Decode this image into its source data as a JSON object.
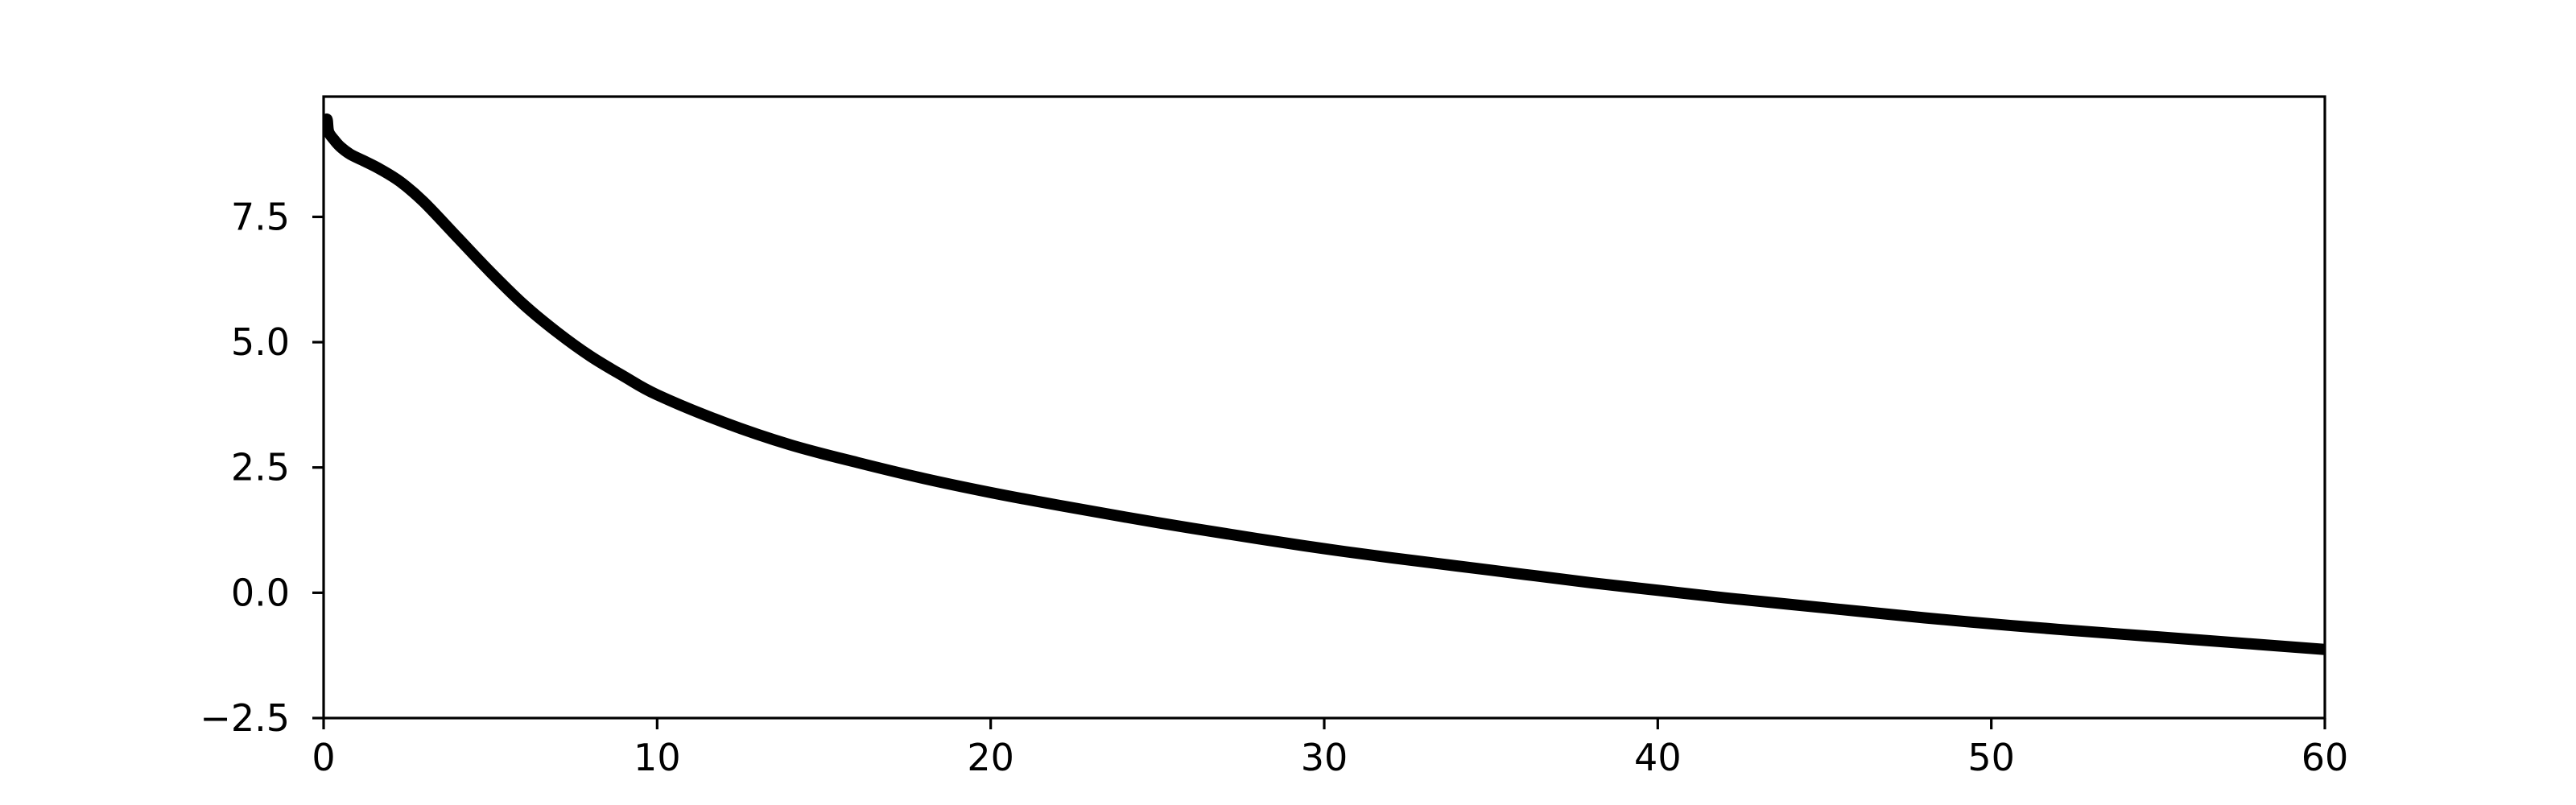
{
  "chart_data": {
    "type": "line",
    "title": "",
    "xlabel": "",
    "ylabel": "",
    "xlim": [
      0,
      60
    ],
    "ylim": [
      -2.5,
      9.9
    ],
    "xticks": [
      0,
      10,
      20,
      30,
      40,
      50,
      60
    ],
    "xtick_labels": [
      "0",
      "10",
      "20",
      "30",
      "40",
      "50",
      "60"
    ],
    "yticks": [
      -2.5,
      0.0,
      2.5,
      5.0,
      7.5
    ],
    "ytick_labels": [
      "−2.5",
      "0.0",
      "2.5",
      "5.0",
      "7.5"
    ],
    "grid": false,
    "legend": "none",
    "series": [
      {
        "color": "#000000",
        "x": [
          0,
          0.1,
          0.15,
          0.3,
          0.5,
          0.8,
          1.2,
          1.7,
          2.3,
          3,
          4,
          5,
          6,
          7,
          8,
          9,
          10,
          12,
          14,
          16,
          18,
          20,
          22,
          25,
          28,
          30,
          32,
          35,
          38,
          40,
          42,
          45,
          48,
          50,
          52,
          55,
          58,
          60
        ],
        "y": [
          9.3,
          9.45,
          9.2,
          9.05,
          8.9,
          8.75,
          8.62,
          8.45,
          8.2,
          7.8,
          7.1,
          6.4,
          5.75,
          5.2,
          4.72,
          4.32,
          3.95,
          3.4,
          2.95,
          2.6,
          2.28,
          2.0,
          1.75,
          1.4,
          1.08,
          0.88,
          0.7,
          0.45,
          0.2,
          0.05,
          -0.1,
          -0.3,
          -0.5,
          -0.62,
          -0.73,
          -0.88,
          -1.03,
          -1.13
        ]
      }
    ]
  }
}
